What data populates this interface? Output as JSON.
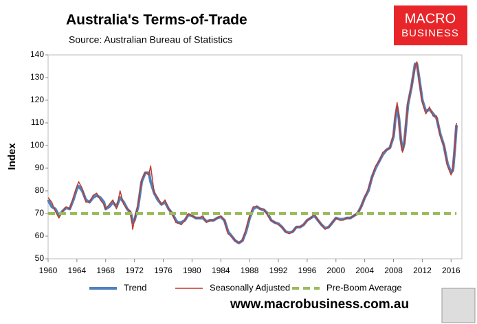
{
  "header": {
    "logo_top": "MACRO",
    "logo_bottom": "BUSINESS",
    "url": "www.macrobusiness.com.au"
  },
  "chart_data": {
    "type": "line",
    "title": "Australia's Terms-of-Trade",
    "subtitle": "Source: Australian Bureau of Statistics",
    "y_label": "Index",
    "x": [
      1960,
      1960.5,
      1961,
      1961.5,
      1962,
      1962.5,
      1963,
      1963.5,
      1964,
      1964.25,
      1964.75,
      1965.25,
      1965.75,
      1966.25,
      1966.75,
      1967.25,
      1967.75,
      1968,
      1968.5,
      1969,
      1969.5,
      1970,
      1970.5,
      1971,
      1971.5,
      1971.75,
      1972,
      1972.5,
      1973,
      1973.5,
      1974,
      1974.25,
      1974.75,
      1975.25,
      1975.75,
      1976.25,
      1976.75,
      1977.25,
      1977.75,
      1978,
      1978.5,
      1979,
      1979.5,
      1980,
      1980.5,
      1981,
      1981.5,
      1982,
      1982.5,
      1983,
      1983.5,
      1984,
      1984.5,
      1985,
      1985.5,
      1986,
      1986.5,
      1987,
      1987.5,
      1988,
      1988.5,
      1989,
      1989.5,
      1990,
      1990.5,
      1991,
      1991.5,
      1992,
      1992.5,
      1993,
      1993.5,
      1994,
      1994.5,
      1995,
      1995.5,
      1996,
      1996.5,
      1997,
      1997.5,
      1998,
      1998.5,
      1999,
      1999.5,
      2000,
      2000.5,
      2001,
      2001.5,
      2002,
      2002.5,
      2003,
      2003.5,
      2004,
      2004.5,
      2005,
      2005.5,
      2006,
      2006.5,
      2007,
      2007.5,
      2008,
      2008.25,
      2008.5,
      2008.75,
      2009,
      2009.25,
      2009.5,
      2010,
      2010.5,
      2011,
      2011.25,
      2011.5,
      2012,
      2012.5,
      2013,
      2013.5,
      2014,
      2014.5,
      2015,
      2015.5,
      2016,
      2016.25,
      2016.5,
      2016.75
    ],
    "series": [
      {
        "name": "Trend",
        "color": "#4f81bd",
        "width": 4,
        "values": [
          76,
          73,
          72,
          69,
          71,
          72.5,
          72,
          76,
          81,
          82,
          80,
          76,
          75,
          77,
          78,
          77,
          75,
          72,
          73,
          75,
          73,
          77,
          75,
          72,
          70,
          66,
          67,
          73,
          84,
          88,
          88,
          84,
          79,
          76,
          74,
          75,
          72,
          70,
          67,
          66,
          66,
          67,
          69.5,
          69,
          68,
          68,
          68,
          66.5,
          67,
          67,
          68,
          68.5,
          67,
          62,
          60,
          58,
          57,
          58,
          62,
          68,
          72,
          73,
          72,
          71.5,
          70,
          67,
          66,
          65.5,
          64,
          62,
          61.5,
          62,
          64,
          64,
          65,
          67,
          68,
          69,
          67,
          65,
          63.5,
          64,
          66,
          68,
          67.5,
          67.5,
          68,
          68,
          69,
          70,
          73,
          77,
          80,
          86,
          90,
          93,
          96,
          98,
          99,
          104,
          112,
          117,
          112,
          103,
          98,
          101,
          118,
          126,
          136,
          136,
          131,
          120,
          115,
          116,
          114,
          112,
          105,
          100,
          92,
          88,
          89,
          98,
          109
        ]
      },
      {
        "name": "Seasonally Adjusted",
        "color": "#c0392b",
        "width": 1.5,
        "values": [
          77,
          75,
          71,
          68,
          71,
          73,
          72,
          77,
          82,
          84,
          81,
          75,
          75,
          78,
          79,
          76,
          74,
          72,
          74,
          76,
          72,
          80,
          74,
          72,
          71,
          63,
          67,
          74,
          85,
          88,
          87,
          91,
          79,
          77,
          74,
          76,
          72,
          70,
          66,
          66,
          65,
          67,
          70,
          69,
          68,
          68,
          69,
          66,
          67,
          67,
          68,
          69,
          67,
          61,
          60,
          58,
          57,
          58,
          63,
          69,
          73,
          73,
          72,
          72,
          69,
          67,
          66,
          65,
          64,
          62,
          61,
          62,
          64,
          64,
          65,
          67,
          68,
          70,
          67,
          65,
          63,
          64,
          66,
          68,
          67,
          67,
          68,
          68,
          69,
          70,
          73,
          77,
          81,
          86,
          91,
          93,
          97,
          98,
          99,
          105,
          113,
          119,
          112,
          102,
          97,
          101,
          119,
          126,
          135,
          137,
          130,
          119,
          114,
          117,
          113,
          113,
          104,
          100,
          91,
          87,
          90,
          98,
          110
        ]
      },
      {
        "name": "Pre-Boom Average",
        "color": "#9bbb59",
        "width": 4,
        "dash": true,
        "x": [
          1960,
          2016.75
        ],
        "values": [
          70,
          70
        ]
      }
    ],
    "xlim": [
      1960,
      2017.5
    ],
    "xticks": [
      1960,
      1964,
      1968,
      1972,
      1976,
      1980,
      1984,
      1988,
      1992,
      1996,
      2000,
      2004,
      2008,
      2012,
      2016
    ],
    "ylim": [
      50,
      140
    ],
    "yticks": [
      50,
      60,
      70,
      80,
      90,
      100,
      110,
      120,
      130,
      140
    ],
    "grid": false,
    "legend": "bottom"
  }
}
